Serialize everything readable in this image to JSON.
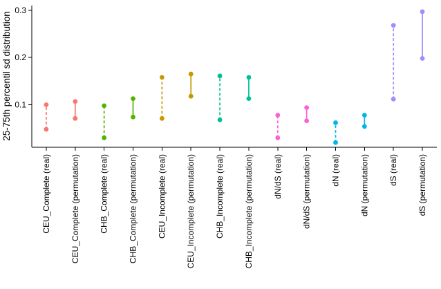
{
  "chart_data": {
    "type": "dumbbell-range",
    "title": "",
    "xlabel": "",
    "ylabel": "25-75th percentil sd distribution",
    "ylim": [
      0.01,
      0.31
    ],
    "yticks": [
      0.1,
      0.2,
      0.3
    ],
    "grid": false,
    "legend": "none",
    "note": "Each category shows a vertical segment spanning the 25th-75th percentile of sd distribution; 'real' series drawn dashed, 'permutation' series drawn solid, points at both ends.",
    "categories": [
      "CEU_Complete (real)",
      "CEU_Complete (permutation)",
      "CHB_Complete (real)",
      "CHB_Complete (permutation)",
      "CEU_Incomplete (real)",
      "CEU_Incomplete (permutation)",
      "CHB_Incomplete (real)",
      "CHB_Incomplete (permutation)",
      "dN/dS (real)",
      "dN/dS (permutation)",
      "dN (real)",
      "dN (permutation)",
      "dS (real)",
      "dS (permutation)"
    ],
    "series": [
      {
        "label": "CEU_Complete (real)",
        "group": "CEU_Complete",
        "line": "dashed",
        "color": "#F8766D",
        "low": 0.048,
        "high": 0.1
      },
      {
        "label": "CEU_Complete (permutation)",
        "group": "CEU_Complete",
        "line": "solid",
        "color": "#F8766D",
        "low": 0.071,
        "high": 0.107
      },
      {
        "label": "CHB_Complete (real)",
        "group": "CHB_Complete",
        "line": "dashed",
        "color": "#53B400",
        "low": 0.03,
        "high": 0.098
      },
      {
        "label": "CHB_Complete (permutation)",
        "group": "CHB_Complete",
        "line": "solid",
        "color": "#53B400",
        "low": 0.074,
        "high": 0.113
      },
      {
        "label": "CEU_Incomplete (real)",
        "group": "CEU_Incomplete",
        "line": "dashed",
        "color": "#C49A00",
        "low": 0.071,
        "high": 0.158
      },
      {
        "label": "CEU_Incomplete (permutation)",
        "group": "CEU_Incomplete",
        "line": "solid",
        "color": "#C49A00",
        "low": 0.118,
        "high": 0.165
      },
      {
        "label": "CHB_Incomplete (real)",
        "group": "CHB_Incomplete",
        "line": "dashed",
        "color": "#00C094",
        "low": 0.068,
        "high": 0.161
      },
      {
        "label": "CHB_Incomplete (permutation)",
        "group": "CHB_Incomplete",
        "line": "solid",
        "color": "#00C094",
        "low": 0.113,
        "high": 0.158
      },
      {
        "label": "dN/dS (real)",
        "group": "dN/dS",
        "line": "dashed",
        "color": "#FB61D7",
        "low": 0.03,
        "high": 0.078
      },
      {
        "label": "dN/dS (permutation)",
        "group": "dN/dS",
        "line": "solid",
        "color": "#FB61D7",
        "low": 0.066,
        "high": 0.094
      },
      {
        "label": "dN (real)",
        "group": "dN",
        "line": "dashed",
        "color": "#00B6EB",
        "low": 0.02,
        "high": 0.062
      },
      {
        "label": "dN (permutation)",
        "group": "dN",
        "line": "solid",
        "color": "#00B6EB",
        "low": 0.054,
        "high": 0.078
      },
      {
        "label": "dS (real)",
        "group": "dS",
        "line": "dashed",
        "color": "#A58AFF",
        "low": 0.112,
        "high": 0.268
      },
      {
        "label": "dS (permutation)",
        "group": "dS",
        "line": "solid",
        "color": "#A58AFF",
        "low": 0.198,
        "high": 0.297
      }
    ]
  }
}
